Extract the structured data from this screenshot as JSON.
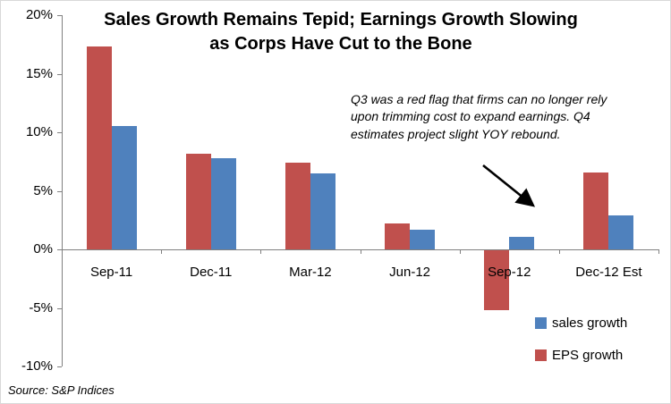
{
  "chart_data": {
    "type": "bar",
    "title_lines": [
      "Sales Growth Remains Tepid; Earnings Growth Slowing",
      "as Corps Have Cut to the Bone"
    ],
    "title": "Sales Growth Remains Tepid; Earnings Growth Slowing as Corps Have Cut to the Bone",
    "categories": [
      "Sep-11",
      "Dec-11",
      "Mar-12",
      "Jun-12",
      "Sep-12",
      "Dec-12 Est"
    ],
    "series": [
      {
        "name": "EPS growth",
        "color": "#C0504D",
        "values": [
          17.3,
          8.2,
          7.4,
          2.2,
          -5.1,
          6.6
        ]
      },
      {
        "name": "sales growth",
        "color": "#4F81BD",
        "values": [
          10.5,
          7.8,
          6.5,
          1.7,
          1.1,
          2.9
        ]
      }
    ],
    "ylim": [
      -10,
      20
    ],
    "yticks": [
      {
        "value": 20,
        "label": "20%"
      },
      {
        "value": 15,
        "label": "15%"
      },
      {
        "value": 10,
        "label": "10%"
      },
      {
        "value": 5,
        "label": "5%"
      },
      {
        "value": 0,
        "label": "0%"
      },
      {
        "value": -5,
        "label": "-5%"
      },
      {
        "value": -10,
        "label": "-10%"
      }
    ],
    "grid": false,
    "legend_position": "bottom-right",
    "legend": [
      {
        "name": "sales growth",
        "color": "#4F81BD"
      },
      {
        "name": "EPS growth",
        "color": "#C0504D"
      }
    ],
    "annotation": "Q3 was a red flag that firms can no longer rely upon trimming cost to expand earnings. Q4 estimates project slight YOY rebound.",
    "source": "Source: S&P Indices"
  }
}
